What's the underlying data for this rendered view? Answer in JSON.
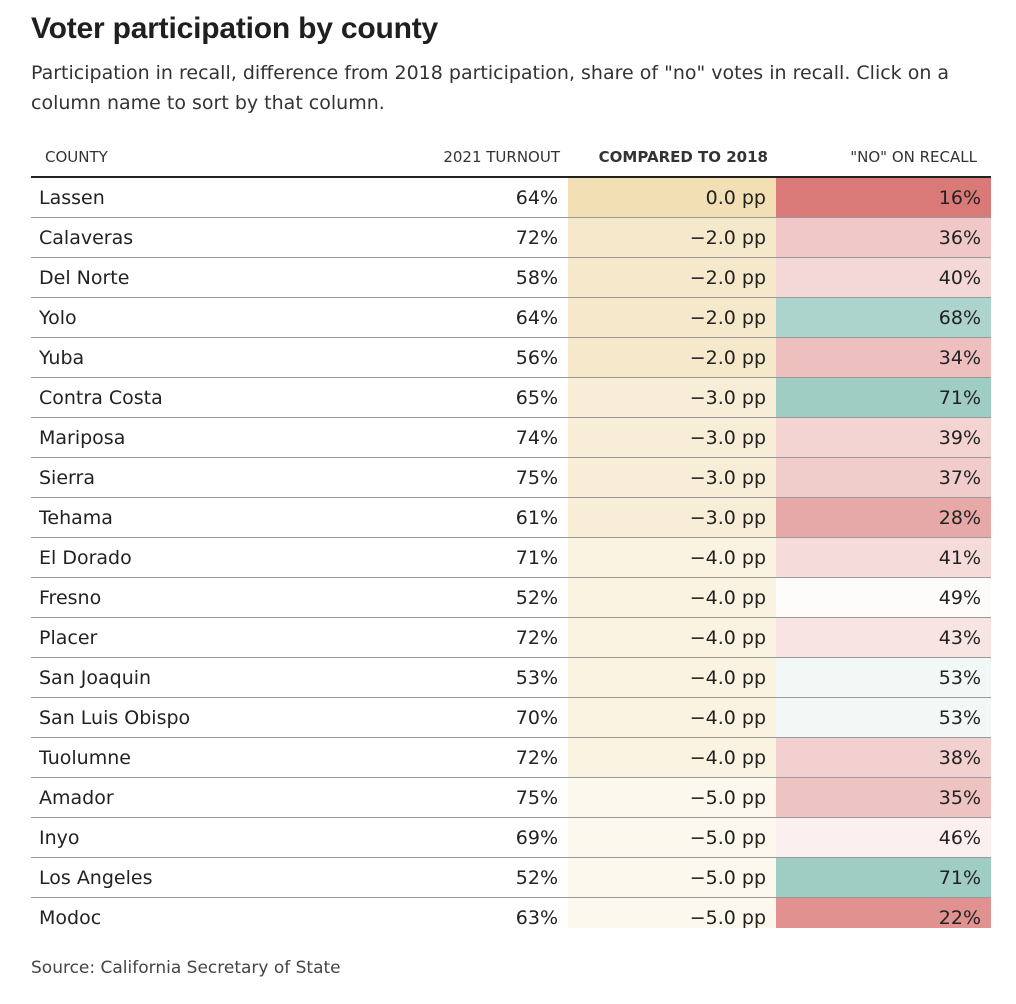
{
  "title": "Voter participation by county",
  "subtitle": "Participation in recall, difference from 2018 participation, share of \"no\" votes in recall. Click on a column name to sort by that column.",
  "source": "Source: California Secretary of State",
  "chart_data": {
    "type": "table",
    "sorted_by": "COMPARED TO 2018",
    "columns": [
      "COUNTY",
      "2021 TURNOUT",
      "COMPARED TO 2018",
      "\"NO\" ON RECALL"
    ],
    "rows": [
      {
        "county": "Lassen",
        "turnout": "64%",
        "compared": "0.0 pp",
        "recall": "16%",
        "compared_value": 0.0,
        "recall_value": 16
      },
      {
        "county": "Calaveras",
        "turnout": "72%",
        "compared": "−2.0 pp",
        "recall": "36%",
        "compared_value": -2.0,
        "recall_value": 36
      },
      {
        "county": "Del Norte",
        "turnout": "58%",
        "compared": "−2.0 pp",
        "recall": "40%",
        "compared_value": -2.0,
        "recall_value": 40
      },
      {
        "county": "Yolo",
        "turnout": "64%",
        "compared": "−2.0 pp",
        "recall": "68%",
        "compared_value": -2.0,
        "recall_value": 68
      },
      {
        "county": "Yuba",
        "turnout": "56%",
        "compared": "−2.0 pp",
        "recall": "34%",
        "compared_value": -2.0,
        "recall_value": 34
      },
      {
        "county": "Contra Costa",
        "turnout": "65%",
        "compared": "−3.0 pp",
        "recall": "71%",
        "compared_value": -3.0,
        "recall_value": 71
      },
      {
        "county": "Mariposa",
        "turnout": "74%",
        "compared": "−3.0 pp",
        "recall": "39%",
        "compared_value": -3.0,
        "recall_value": 39
      },
      {
        "county": "Sierra",
        "turnout": "75%",
        "compared": "−3.0 pp",
        "recall": "37%",
        "compared_value": -3.0,
        "recall_value": 37
      },
      {
        "county": "Tehama",
        "turnout": "61%",
        "compared": "−3.0 pp",
        "recall": "28%",
        "compared_value": -3.0,
        "recall_value": 28
      },
      {
        "county": "El Dorado",
        "turnout": "71%",
        "compared": "−4.0 pp",
        "recall": "41%",
        "compared_value": -4.0,
        "recall_value": 41
      },
      {
        "county": "Fresno",
        "turnout": "52%",
        "compared": "−4.0 pp",
        "recall": "49%",
        "compared_value": -4.0,
        "recall_value": 49
      },
      {
        "county": "Placer",
        "turnout": "72%",
        "compared": "−4.0 pp",
        "recall": "43%",
        "compared_value": -4.0,
        "recall_value": 43
      },
      {
        "county": "San Joaquin",
        "turnout": "53%",
        "compared": "−4.0 pp",
        "recall": "53%",
        "compared_value": -4.0,
        "recall_value": 53
      },
      {
        "county": "San Luis Obispo",
        "turnout": "70%",
        "compared": "−4.0 pp",
        "recall": "53%",
        "compared_value": -4.0,
        "recall_value": 53
      },
      {
        "county": "Tuolumne",
        "turnout": "72%",
        "compared": "−4.0 pp",
        "recall": "38%",
        "compared_value": -4.0,
        "recall_value": 38
      },
      {
        "county": "Amador",
        "turnout": "75%",
        "compared": "−5.0 pp",
        "recall": "35%",
        "compared_value": -5.0,
        "recall_value": 35
      },
      {
        "county": "Inyo",
        "turnout": "69%",
        "compared": "−5.0 pp",
        "recall": "46%",
        "compared_value": -5.0,
        "recall_value": 46
      },
      {
        "county": "Los Angeles",
        "turnout": "52%",
        "compared": "−5.0 pp",
        "recall": "71%",
        "compared_value": -5.0,
        "recall_value": 71
      },
      {
        "county": "Modoc",
        "turnout": "63%",
        "compared": "−5.0 pp",
        "recall": "22%",
        "compared_value": -5.0,
        "recall_value": 22
      }
    ],
    "colors": {
      "compared_base": "#f2dfb4",
      "recall_low": "#d97a78",
      "recall_mid": "#ffffff",
      "recall_high": "#9fcdc3"
    }
  }
}
